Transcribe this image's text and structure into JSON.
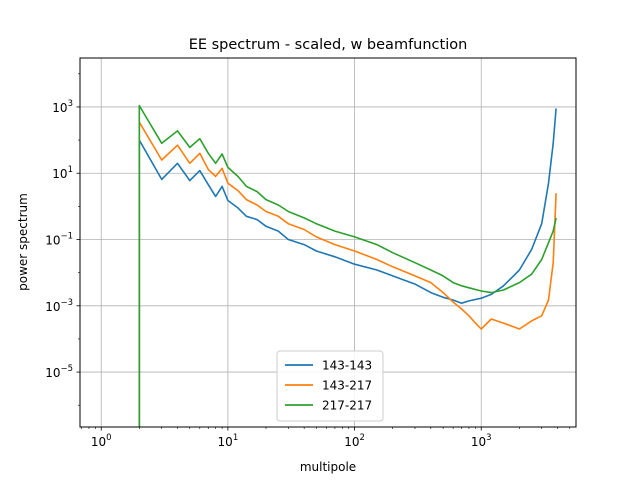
{
  "chart_data": {
    "type": "line",
    "title": "EE spectrum - scaled, w beamfunction",
    "xlabel": "multipole",
    "ylabel": "power spectrum",
    "xscale": "log",
    "yscale": "log",
    "xlim": [
      0.68,
      5600
    ],
    "ylim": [
      2.2e-07,
      30000
    ],
    "grid": true,
    "legend_position": "lower-center",
    "x_ticks": [
      {
        "value": 1,
        "base": "10",
        "exp": "0"
      },
      {
        "value": 10,
        "base": "10",
        "exp": "1"
      },
      {
        "value": 100,
        "base": "10",
        "exp": "2"
      },
      {
        "value": 1000,
        "base": "10",
        "exp": "3"
      }
    ],
    "y_ticks": [
      {
        "value": 1e-05,
        "base": "10",
        "exp": "−5"
      },
      {
        "value": 0.001,
        "base": "10",
        "exp": "−3"
      },
      {
        "value": 0.1,
        "base": "10",
        "exp": "−1"
      },
      {
        "value": 10,
        "base": "10",
        "exp": "1"
      },
      {
        "value": 1000,
        "base": "10",
        "exp": "3"
      }
    ],
    "series": [
      {
        "name": "143-143",
        "color": "#1f77b4",
        "points": [
          [
            2,
            100
          ],
          [
            3,
            6.5
          ],
          [
            4,
            20
          ],
          [
            5,
            6
          ],
          [
            6,
            12
          ],
          [
            7,
            4.5
          ],
          [
            8,
            2
          ],
          [
            9,
            4
          ],
          [
            10,
            1.5
          ],
          [
            12,
            0.9
          ],
          [
            14,
            0.5
          ],
          [
            17,
            0.4
          ],
          [
            20,
            0.25
          ],
          [
            25,
            0.18
          ],
          [
            30,
            0.1
          ],
          [
            40,
            0.07
          ],
          [
            50,
            0.045
          ],
          [
            70,
            0.03
          ],
          [
            100,
            0.018
          ],
          [
            150,
            0.012
          ],
          [
            200,
            0.008
          ],
          [
            300,
            0.0045
          ],
          [
            400,
            0.0025
          ],
          [
            500,
            0.0018
          ],
          [
            600,
            0.0015
          ],
          [
            700,
            0.0012
          ],
          [
            800,
            0.0014
          ],
          [
            1000,
            0.0017
          ],
          [
            1200,
            0.0022
          ],
          [
            1500,
            0.004
          ],
          [
            2000,
            0.012
          ],
          [
            2500,
            0.05
          ],
          [
            3000,
            0.3
          ],
          [
            3400,
            5
          ],
          [
            3700,
            80
          ],
          [
            3900,
            900
          ]
        ]
      },
      {
        "name": "143-217",
        "color": "#ff7f0e",
        "points": [
          [
            2,
            350
          ],
          [
            3,
            25
          ],
          [
            4,
            70
          ],
          [
            5,
            20
          ],
          [
            6,
            40
          ],
          [
            7,
            13
          ],
          [
            8,
            8
          ],
          [
            9,
            14
          ],
          [
            10,
            5
          ],
          [
            12,
            3
          ],
          [
            14,
            1.6
          ],
          [
            17,
            1.1
          ],
          [
            20,
            0.7
          ],
          [
            25,
            0.5
          ],
          [
            30,
            0.3
          ],
          [
            40,
            0.2
          ],
          [
            50,
            0.12
          ],
          [
            70,
            0.07
          ],
          [
            100,
            0.045
          ],
          [
            150,
            0.025
          ],
          [
            200,
            0.015
          ],
          [
            300,
            0.008
          ],
          [
            400,
            0.005
          ],
          [
            500,
            0.0025
          ],
          [
            600,
            0.0013
          ],
          [
            700,
            0.0008
          ],
          [
            800,
            0.0005
          ],
          [
            900,
            0.0003
          ],
          [
            1000,
            0.0002
          ],
          [
            1200,
            0.0004
          ],
          [
            1500,
            0.0003
          ],
          [
            2000,
            0.0002
          ],
          [
            2500,
            0.00035
          ],
          [
            3000,
            0.0005
          ],
          [
            3400,
            0.0015
          ],
          [
            3700,
            0.02
          ],
          [
            3900,
            2.5
          ]
        ]
      },
      {
        "name": "217-217",
        "color": "#2ca02c",
        "points": [
          [
            2,
            1100
          ],
          [
            3,
            80
          ],
          [
            4,
            190
          ],
          [
            5,
            60
          ],
          [
            6,
            110
          ],
          [
            7,
            40
          ],
          [
            8,
            20
          ],
          [
            9,
            38
          ],
          [
            10,
            15
          ],
          [
            12,
            8
          ],
          [
            14,
            4
          ],
          [
            17,
            2.8
          ],
          [
            20,
            1.6
          ],
          [
            25,
            1.1
          ],
          [
            30,
            0.7
          ],
          [
            40,
            0.45
          ],
          [
            50,
            0.3
          ],
          [
            70,
            0.18
          ],
          [
            100,
            0.12
          ],
          [
            150,
            0.07
          ],
          [
            200,
            0.04
          ],
          [
            300,
            0.02
          ],
          [
            400,
            0.012
          ],
          [
            500,
            0.008
          ],
          [
            600,
            0.005
          ],
          [
            700,
            0.004
          ],
          [
            800,
            0.0035
          ],
          [
            1000,
            0.0028
          ],
          [
            1200,
            0.0025
          ],
          [
            1500,
            0.003
          ],
          [
            2000,
            0.005
          ],
          [
            2500,
            0.009
          ],
          [
            3000,
            0.025
          ],
          [
            3400,
            0.08
          ],
          [
            3700,
            0.18
          ],
          [
            3900,
            0.45
          ]
        ]
      }
    ]
  }
}
